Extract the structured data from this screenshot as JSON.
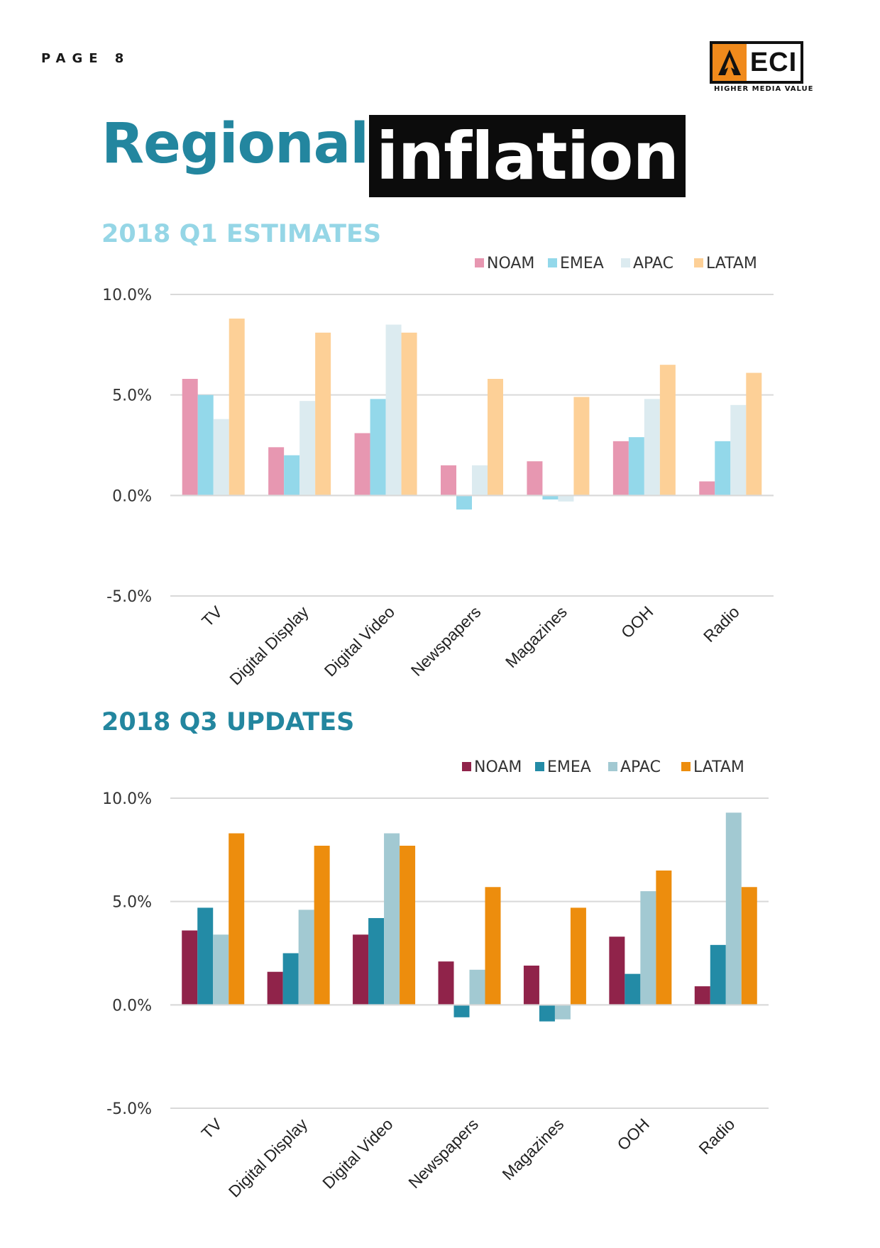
{
  "page": {
    "label": "PAGE 8"
  },
  "logo": {
    "text": "ECI",
    "tagline": "HIGHER MEDIA VALUE"
  },
  "title": {
    "part1": "Regional",
    "part2": "inflation"
  },
  "sections": [
    {
      "title": "2018 Q1 ESTIMATES"
    },
    {
      "title": "2018 Q3 UPDATES"
    }
  ],
  "chart_data": [
    {
      "type": "bar",
      "title": "2018 Q1 ESTIMATES",
      "categories": [
        "TV",
        "Digital Display",
        "Digital Video",
        "Newspapers",
        "Magazines",
        "OOH",
        "Radio"
      ],
      "series": [
        {
          "name": "NOAM",
          "color": "#e797b1",
          "values": [
            5.8,
            2.4,
            3.1,
            1.5,
            1.7,
            2.7,
            0.7
          ]
        },
        {
          "name": "EMEA",
          "color": "#93d8ea",
          "values": [
            5.0,
            2.0,
            4.8,
            -0.7,
            -0.2,
            2.9,
            2.7
          ]
        },
        {
          "name": "APAC",
          "color": "#dcebf0",
          "values": [
            3.8,
            4.7,
            8.5,
            1.5,
            -0.3,
            4.8,
            4.5
          ]
        },
        {
          "name": "LATAM",
          "color": "#fdd097",
          "values": [
            8.8,
            8.1,
            8.1,
            5.8,
            4.9,
            6.5,
            6.1
          ]
        }
      ],
      "ylim": [
        -5,
        10
      ],
      "yticks": [
        "10.0%",
        "5.0%",
        "0.0%",
        "-5.0%"
      ],
      "ytick_values": [
        10,
        5,
        0,
        -5
      ],
      "grid": true,
      "legend_position": "top-right"
    },
    {
      "type": "bar",
      "title": "2018 Q3 UPDATES",
      "categories": [
        "TV",
        "Digital Display",
        "Digital Video",
        "Newspapers",
        "Magazines",
        "OOH",
        "Radio"
      ],
      "series": [
        {
          "name": "NOAM",
          "color": "#90234a",
          "values": [
            3.6,
            1.6,
            3.4,
            2.1,
            1.9,
            3.3,
            0.9
          ]
        },
        {
          "name": "EMEA",
          "color": "#238ba6",
          "values": [
            4.7,
            2.5,
            4.2,
            -0.6,
            -0.8,
            1.5,
            2.9
          ]
        },
        {
          "name": "APAC",
          "color": "#a2c9d2",
          "values": [
            3.4,
            4.6,
            8.3,
            1.7,
            -0.7,
            5.5,
            9.3
          ]
        },
        {
          "name": "LATAM",
          "color": "#ed8d0d",
          "values": [
            8.3,
            7.7,
            7.7,
            5.7,
            4.7,
            6.5,
            5.7
          ]
        }
      ],
      "ylim": [
        -5,
        10
      ],
      "yticks": [
        "10.0%",
        "5.0%",
        "0.0%",
        "-5.0%"
      ],
      "ytick_values": [
        10,
        5,
        0,
        -5
      ],
      "grid": true,
      "legend_position": "top-right"
    }
  ]
}
